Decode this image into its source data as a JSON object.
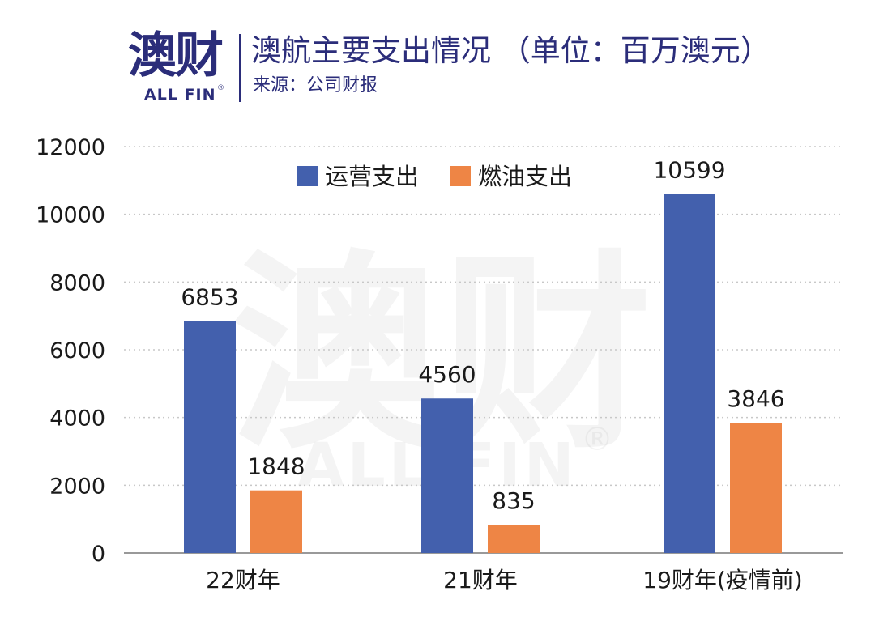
{
  "header": {
    "logo_cn": "澳财",
    "logo_en": "ALL FIN",
    "logo_reg": "®",
    "title": "澳航主要支出情况 （单位：百万澳元）",
    "subtitle": "来源：公司财报"
  },
  "watermark": {
    "cn": "澳财",
    "en": "ALL FIN",
    "reg": "®"
  },
  "colors": {
    "operating": "#4360ad",
    "fuel": "#ee8545",
    "title": "#2b2d7a",
    "grid": "#c8c8c8",
    "text": "#1a1a1a"
  },
  "chart_data": {
    "type": "bar",
    "categories": [
      "22财年",
      "21财年",
      "19财年(疫情前)"
    ],
    "series": [
      {
        "name": "运营支出",
        "values": [
          6853,
          4560,
          10599
        ]
      },
      {
        "name": "燃油支出",
        "values": [
          1848,
          835,
          3846
        ]
      }
    ],
    "yticks": [
      "0",
      "2000",
      "4000",
      "6000",
      "8000",
      "10000",
      "12000"
    ],
    "ylim": [
      0,
      12000
    ],
    "grid": true,
    "legend": "top-center",
    "data_labels": true
  }
}
